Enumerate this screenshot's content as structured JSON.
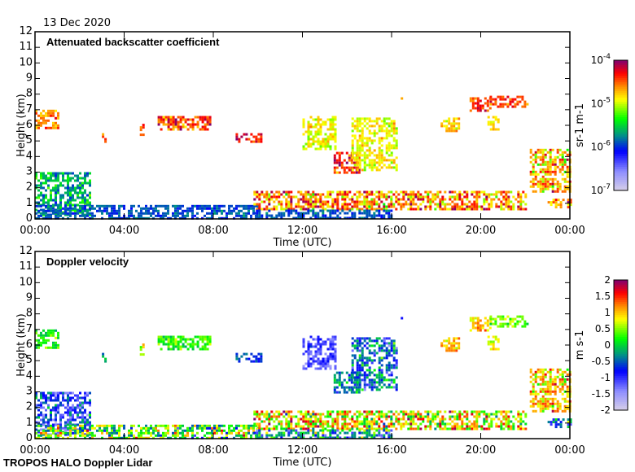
{
  "date_label": "13 Dec 2020",
  "footer": "TROPOS HALO Doppler Lidar",
  "chart_data": [
    {
      "type": "heatmap",
      "title": "Attenuated backscatter coefficient",
      "xlabel": "Time (UTC)",
      "ylabel": "Height (km)",
      "xlim": [
        0,
        24
      ],
      "ylim": [
        0,
        12
      ],
      "xticks": [
        "00:00",
        "04:00",
        "08:00",
        "12:00",
        "16:00",
        "20:00",
        "00:00"
      ],
      "yticks": [
        "0",
        "1",
        "2",
        "3",
        "4",
        "5",
        "6",
        "7",
        "8",
        "9",
        "10",
        "11",
        "12"
      ],
      "colorbar": {
        "label": "sr-1 m-1",
        "label_base": "sr",
        "label_unit2": "m",
        "exp": "-1",
        "scale": "log10",
        "range": [
          -7,
          -4
        ],
        "ticks": [
          {
            "base": "10",
            "exp": "-7",
            "v": -7
          },
          {
            "base": "10",
            "exp": "-6",
            "v": -6
          },
          {
            "base": "10",
            "exp": "-5",
            "v": -5
          },
          {
            "base": "10",
            "exp": "-4",
            "v": -4
          }
        ]
      },
      "features": [
        {
          "t": [
            0.0,
            1.0
          ],
          "h": [
            5.8,
            7.0
          ],
          "v": -4.6,
          "s": 0.2
        },
        {
          "t": [
            3.0,
            3.15
          ],
          "h": [
            4.9,
            5.5
          ],
          "v": -4.5,
          "s": 0.2
        },
        {
          "t": [
            4.7,
            4.9
          ],
          "h": [
            5.4,
            6.1
          ],
          "v": -4.5,
          "s": 0.2
        },
        {
          "t": [
            5.5,
            7.9
          ],
          "h": [
            5.8,
            6.6
          ],
          "v": -4.4,
          "s": 0.3
        },
        {
          "t": [
            9.0,
            10.1
          ],
          "h": [
            5.0,
            5.5
          ],
          "v": -4.3,
          "s": 0.2
        },
        {
          "t": [
            12.0,
            13.5
          ],
          "h": [
            4.5,
            6.6
          ],
          "v": -4.9,
          "s": 0.2
        },
        {
          "t": [
            13.4,
            14.6
          ],
          "h": [
            2.9,
            4.3
          ],
          "v": -4.3,
          "s": 0.3
        },
        {
          "t": [
            14.2,
            16.2
          ],
          "h": [
            3.2,
            6.5
          ],
          "v": -4.9,
          "s": 0.2
        },
        {
          "t": [
            16.3,
            16.5
          ],
          "h": [
            7.5,
            7.8
          ],
          "v": -4.5,
          "s": 0.1
        },
        {
          "t": [
            18.2,
            19.0
          ],
          "h": [
            5.6,
            6.5
          ],
          "v": -4.8,
          "s": 0.2
        },
        {
          "t": [
            19.5,
            20.4
          ],
          "h": [
            7.0,
            7.8
          ],
          "v": -4.4,
          "s": 0.2
        },
        {
          "t": [
            20.3,
            20.8
          ],
          "h": [
            5.8,
            6.6
          ],
          "v": -4.8,
          "s": 0.2
        },
        {
          "t": [
            20.4,
            22.1
          ],
          "h": [
            7.2,
            7.9
          ],
          "v": -4.4,
          "s": 0.2
        },
        {
          "t": [
            22.2,
            24.0
          ],
          "h": [
            1.8,
            4.5
          ],
          "v": -4.7,
          "s": 0.4
        },
        {
          "t": [
            0.0,
            2.5
          ],
          "h": [
            0.3,
            3.0
          ],
          "v": -5.6,
          "s": 0.3
        },
        {
          "t": [
            0.0,
            10.0
          ],
          "h": [
            0.0,
            0.9
          ],
          "v": -5.9,
          "s": 0.15
        },
        {
          "t": [
            9.8,
            22.0
          ],
          "h": [
            0.6,
            1.8
          ],
          "v": -4.6,
          "s": 0.45
        },
        {
          "t": [
            9.8,
            16.0
          ],
          "h": [
            0.0,
            0.6
          ],
          "v": -5.9,
          "s": 0.15
        },
        {
          "t": [
            23.0,
            24.0
          ],
          "h": [
            0.8,
            1.3
          ],
          "v": -4.6,
          "s": 0.3
        }
      ]
    },
    {
      "type": "heatmap",
      "title": "Doppler velocity",
      "xlabel": "Time (UTC)",
      "ylabel": "Height (km)",
      "xlim": [
        0,
        24
      ],
      "ylim": [
        0,
        12
      ],
      "xticks": [
        "00:00",
        "04:00",
        "08:00",
        "12:00",
        "16:00",
        "20:00",
        "00:00"
      ],
      "yticks": [
        "0",
        "1",
        "2",
        "3",
        "4",
        "5",
        "6",
        "7",
        "8",
        "9",
        "10",
        "11",
        "12"
      ],
      "colorbar": {
        "label": "m s-1",
        "label_base": "m",
        "label_unit2": "s",
        "exp": "-1",
        "scale": "linear",
        "range": [
          -2,
          2
        ],
        "ticks": [
          {
            "base": "2",
            "v": 2
          },
          {
            "base": "1.5",
            "v": 1.5
          },
          {
            "base": "1",
            "v": 1
          },
          {
            "base": "0.5",
            "v": 0.5
          },
          {
            "base": "0",
            "v": 0
          },
          {
            "base": "-0.5",
            "v": -0.5
          },
          {
            "base": "-1",
            "v": -1
          },
          {
            "base": "-1.5",
            "v": -1.5
          },
          {
            "base": "-2",
            "v": -2
          }
        ]
      },
      "features": [
        {
          "t": [
            0.0,
            1.0
          ],
          "h": [
            5.8,
            7.0
          ],
          "v": 0.2,
          "s": 0.3
        },
        {
          "t": [
            3.0,
            3.15
          ],
          "h": [
            4.9,
            5.5
          ],
          "v": -0.2,
          "s": 0.3
        },
        {
          "t": [
            4.7,
            4.9
          ],
          "h": [
            5.4,
            6.1
          ],
          "v": 0.6,
          "s": 0.5
        },
        {
          "t": [
            5.5,
            7.9
          ],
          "h": [
            5.8,
            6.6
          ],
          "v": 0.3,
          "s": 0.3
        },
        {
          "t": [
            9.0,
            10.1
          ],
          "h": [
            5.0,
            5.5
          ],
          "v": -0.6,
          "s": 0.2
        },
        {
          "t": [
            12.0,
            13.5
          ],
          "h": [
            4.5,
            6.6
          ],
          "v": -1.1,
          "s": 0.3
        },
        {
          "t": [
            13.4,
            14.6
          ],
          "h": [
            2.9,
            4.3
          ],
          "v": -0.3,
          "s": 0.4
        },
        {
          "t": [
            14.2,
            16.2
          ],
          "h": [
            3.2,
            6.5
          ],
          "v": -0.5,
          "s": 0.6
        },
        {
          "t": [
            16.3,
            16.5
          ],
          "h": [
            7.5,
            7.8
          ],
          "v": -0.7,
          "s": 0.1
        },
        {
          "t": [
            18.2,
            19.0
          ],
          "h": [
            5.6,
            6.5
          ],
          "v": 1.0,
          "s": 0.3
        },
        {
          "t": [
            19.5,
            20.4
          ],
          "h": [
            7.0,
            7.8
          ],
          "v": 1.0,
          "s": 0.3
        },
        {
          "t": [
            20.3,
            20.8
          ],
          "h": [
            5.8,
            6.6
          ],
          "v": 0.8,
          "s": 0.4
        },
        {
          "t": [
            20.4,
            22.1
          ],
          "h": [
            7.2,
            7.9
          ],
          "v": 0.5,
          "s": 0.3
        },
        {
          "t": [
            22.2,
            24.0
          ],
          "h": [
            1.8,
            4.5
          ],
          "v": 1.0,
          "s": 0.5
        },
        {
          "t": [
            0.0,
            2.5
          ],
          "h": [
            0.3,
            3.0
          ],
          "v": -0.8,
          "s": 0.6
        },
        {
          "t": [
            0.0,
            10.0
          ],
          "h": [
            0.0,
            0.9
          ],
          "v": 0.3,
          "s": 0.8
        },
        {
          "t": [
            9.8,
            22.0
          ],
          "h": [
            0.6,
            1.8
          ],
          "v": 0.8,
          "s": 0.8
        },
        {
          "t": [
            9.8,
            16.0
          ],
          "h": [
            0.0,
            0.6
          ],
          "v": -0.3,
          "s": 0.8
        },
        {
          "t": [
            23.0,
            24.0
          ],
          "h": [
            0.8,
            1.3
          ],
          "v": -0.4,
          "s": 0.6
        }
      ]
    }
  ]
}
